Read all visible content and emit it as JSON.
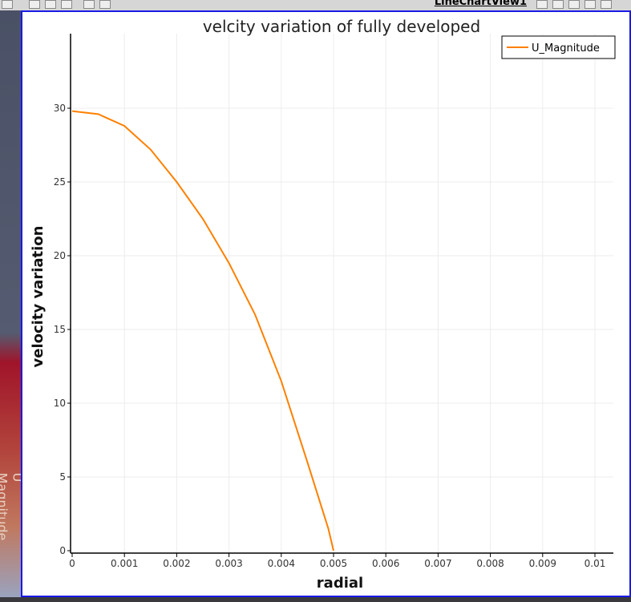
{
  "toolbar": {
    "view_title": "LineChartView1"
  },
  "left_panel": {
    "label": "U Magnitude"
  },
  "colors": {
    "series": "#ff8000",
    "frame": "#1a1ae6"
  },
  "chart_data": {
    "type": "line",
    "title": "velcity variation of fully developed",
    "xlabel": "radial",
    "ylabel": "velocity variation",
    "xlim": [
      0,
      0.0103
    ],
    "ylim": [
      0,
      35
    ],
    "xticks": [
      0,
      0.001,
      0.002,
      0.003,
      0.004,
      0.005,
      0.006,
      0.007,
      0.008,
      0.009,
      0.01
    ],
    "xtick_labels": [
      "0",
      "0.001",
      "0.002",
      "0.003",
      "0.004",
      "0.005",
      "0.006",
      "0.007",
      "0.008",
      "0.009",
      "0.01"
    ],
    "yticks": [
      0,
      5,
      10,
      15,
      20,
      25,
      30
    ],
    "ytick_labels": [
      "0",
      "5",
      "10",
      "15",
      "20",
      "25",
      "30"
    ],
    "grid": true,
    "legend_position": "top-right",
    "series": [
      {
        "name": "U_Magnitude",
        "color": "#ff8000",
        "x": [
          0,
          0.0005,
          0.001,
          0.0015,
          0.002,
          0.0025,
          0.003,
          0.0035,
          0.004,
          0.0045,
          0.0049,
          0.005
        ],
        "y": [
          29.8,
          29.6,
          28.8,
          27.2,
          25.0,
          22.5,
          19.5,
          16.0,
          11.5,
          6.0,
          1.5,
          0
        ]
      }
    ]
  }
}
